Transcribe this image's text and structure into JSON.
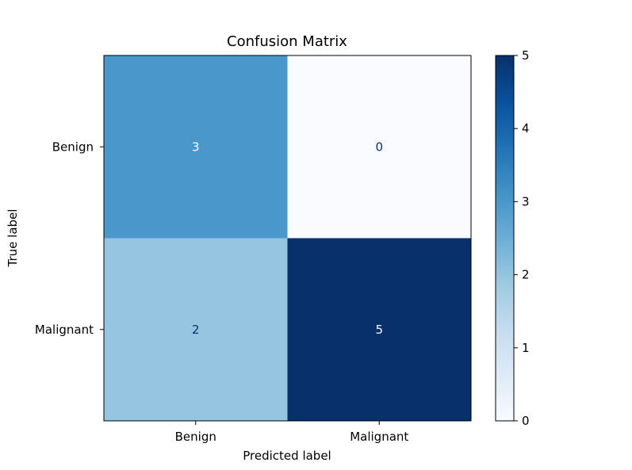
{
  "chart_data": {
    "type": "heatmap",
    "title": "Confusion Matrix",
    "xlabel": "Predicted label",
    "ylabel": "True label",
    "x_categories": [
      "Benign",
      "Malignant"
    ],
    "y_categories": [
      "Benign",
      "Malignant"
    ],
    "values": [
      [
        3,
        0
      ],
      [
        2,
        5
      ]
    ],
    "colormap": "Blues",
    "colorbar": {
      "range": [
        0,
        5
      ],
      "ticks": [
        "0",
        "1",
        "2",
        "3",
        "4",
        "5"
      ]
    },
    "colors": {
      "low_text": "#08306b",
      "high_text": "#f7fbff"
    }
  }
}
